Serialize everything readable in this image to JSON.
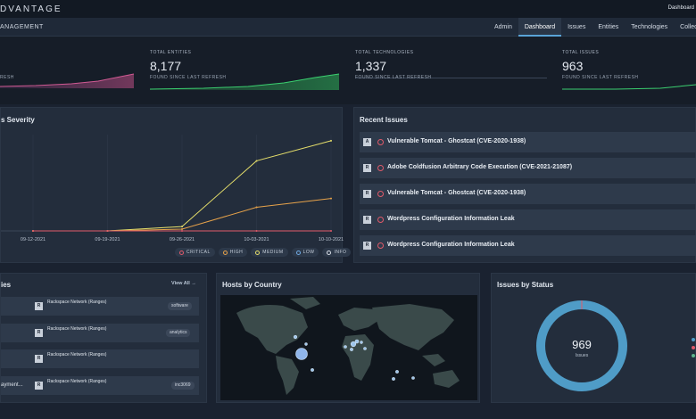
{
  "header": {
    "brand": "DVANTAGE",
    "right_text": "Dashboard"
  },
  "nav": {
    "section_title": "ANAGEMENT",
    "tabs": [
      "Admin",
      "Dashboard",
      "Issues",
      "Entities",
      "Technologies",
      "Collections"
    ],
    "active_tab": "Dashboard"
  },
  "stats": {
    "first_foot": "RESH",
    "entities": {
      "label": "TOTAL ENTITIES",
      "value": "8,177",
      "foot": "FOUND SINCE LAST REFRESH"
    },
    "technologies": {
      "label": "TOTAL TECHNOLOGIES",
      "value": "1,337",
      "foot": "FOUND SINCE LAST REFRESH"
    },
    "issues": {
      "label": "TOTAL ISSUES",
      "value": "963",
      "foot": "FOUND SINCE LAST REFRESH"
    }
  },
  "severity_panel": {
    "title": "s Severity",
    "legend": [
      {
        "label": "CRITICAL",
        "color": "#e05a6a"
      },
      {
        "label": "HIGH",
        "color": "#e6a24a"
      },
      {
        "label": "MEDIUM",
        "color": "#e4dd6a"
      },
      {
        "label": "LOW",
        "color": "#6fa9e2"
      },
      {
        "label": "INFO",
        "color": "#d7dde6"
      }
    ]
  },
  "chart_data": {
    "type": "line",
    "x": [
      "09-12-2021",
      "09-19-2021",
      "09-26-2021",
      "10-03-2021",
      "10-10-2021"
    ],
    "series": [
      {
        "name": "MEDIUM",
        "color": "#e4dd6a",
        "values": [
          0,
          0,
          5,
          80,
          103
        ]
      },
      {
        "name": "HIGH",
        "color": "#e6a24a",
        "values": [
          0,
          0,
          2,
          27,
          37
        ]
      },
      {
        "name": "CRITICAL",
        "color": "#e05a6a",
        "values": [
          0,
          0,
          0,
          0,
          0
        ]
      }
    ],
    "ylim": [
      0,
      110
    ],
    "grid": true
  },
  "recent_issues": {
    "title": "Recent Issues",
    "items": [
      {
        "badge": "A",
        "text": "Vulnerable Tomcat - Ghostcat (CVE-2020-1938)"
      },
      {
        "badge": "R",
        "text": "Adobe Coldfusion Arbitrary Code Execution (CVE-2021-21087)"
      },
      {
        "badge": "R",
        "text": "Vulnerable Tomcat - Ghostcat (CVE-2020-1938)"
      },
      {
        "badge": "R",
        "text": "Wordpress Configuration Information Leak"
      },
      {
        "badge": "R",
        "text": "Wordpress Configuration Information Leak"
      }
    ]
  },
  "hosts_panel": {
    "title": "ies",
    "view_all": "View All",
    "rows": [
      {
        "left": "",
        "name": "Rackspace Network (Ranges)",
        "tag": "software"
      },
      {
        "left": "",
        "name": "Rackspace Network (Ranges)",
        "tag": "analytics"
      },
      {
        "left": "",
        "name": "Rackspace Network (Ranges)",
        "tag": ""
      },
      {
        "left": "ayment...",
        "name": "Rackspace Network (Ranges)",
        "tag": "inc3069"
      }
    ]
  },
  "country_panel": {
    "title": "Hosts by Country"
  },
  "status_panel": {
    "title": "Issues by Status",
    "total": "969",
    "total_label": "Issues",
    "ring_color": "#4f9cc7",
    "legend_colors": [
      "#4f9cc7",
      "#e05a6a",
      "#5fb38b"
    ]
  }
}
